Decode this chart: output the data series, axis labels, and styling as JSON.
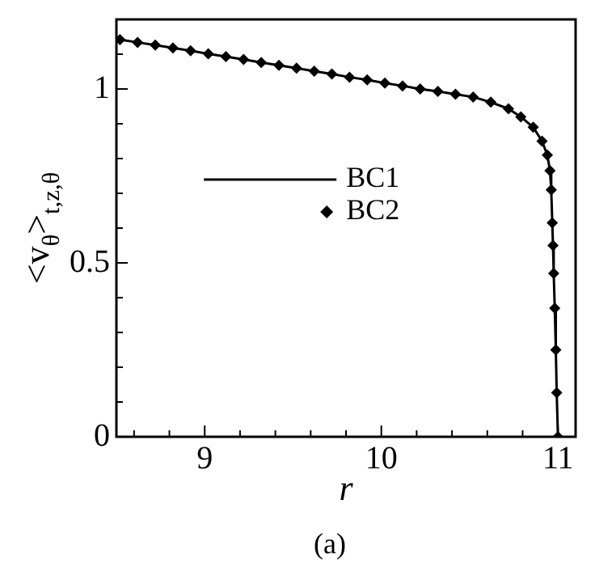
{
  "chart_data": {
    "type": "line",
    "xlabel": "r",
    "ylabel": "<v$_{θ}$>$_{t,z,θ}$",
    "annotations": [
      "(a)"
    ],
    "xlim": [
      8.5,
      11.1
    ],
    "ylim": [
      0,
      1.2
    ],
    "xticks": [
      {
        "value": 8.6,
        "label": null
      },
      {
        "value": 8.8,
        "label": null
      },
      9,
      {
        "value": 9.2,
        "label": null
      },
      {
        "value": 9.4,
        "label": null
      },
      {
        "value": 9.6,
        "label": null
      },
      {
        "value": 9.8,
        "label": null
      },
      10,
      {
        "value": 10.2,
        "label": null
      },
      {
        "value": 10.4,
        "label": null
      },
      {
        "value": 10.6,
        "label": null
      },
      {
        "value": 10.8,
        "label": null
      },
      11
    ],
    "yticks": [
      0,
      {
        "value": 0.1,
        "label": null
      },
      {
        "value": 0.2,
        "label": null
      },
      {
        "value": 0.3,
        "label": null
      },
      {
        "value": 0.4,
        "label": null
      },
      0.5,
      {
        "value": 0.6,
        "label": null
      },
      {
        "value": 0.7,
        "label": null
      },
      {
        "value": 0.8,
        "label": null
      },
      {
        "value": 0.9,
        "label": null
      },
      1,
      {
        "value": 1.1,
        "label": null
      }
    ],
    "grid": false,
    "legend": "left",
    "series": [
      {
        "name": "BC1",
        "type": "line",
        "color": "#000000",
        "marker": "none",
        "line_style": "solid",
        "x": [
          8.52,
          8.62,
          8.72,
          8.82,
          8.92,
          9.02,
          9.12,
          9.22,
          9.32,
          9.42,
          9.52,
          9.62,
          9.72,
          9.82,
          9.92,
          10.02,
          10.12,
          10.22,
          10.32,
          10.42,
          10.52,
          10.62,
          10.72,
          10.79,
          10.86,
          10.91,
          10.94,
          10.955,
          10.962,
          10.968,
          10.972,
          10.976,
          10.982,
          10.988,
          10.993,
          11.0
        ],
        "values": [
          1.142,
          1.134,
          1.126,
          1.118,
          1.11,
          1.101,
          1.093,
          1.085,
          1.076,
          1.068,
          1.06,
          1.051,
          1.043,
          1.034,
          1.026,
          1.017,
          1.009,
          1.0,
          0.993,
          0.985,
          0.977,
          0.962,
          0.943,
          0.92,
          0.89,
          0.85,
          0.81,
          0.765,
          0.71,
          0.615,
          0.55,
          0.47,
          0.37,
          0.25,
          0.127,
          0
        ]
      },
      {
        "name": "BC2",
        "type": "scatter",
        "color": "#000000",
        "marker": "diamond",
        "x": [
          8.52,
          8.62,
          8.72,
          8.82,
          8.92,
          9.02,
          9.12,
          9.22,
          9.32,
          9.42,
          9.52,
          9.62,
          9.72,
          9.82,
          9.92,
          10.02,
          10.12,
          10.22,
          10.32,
          10.42,
          10.52,
          10.62,
          10.72,
          10.79,
          10.86,
          10.91,
          10.94,
          10.955,
          10.962,
          10.968,
          10.972,
          10.976,
          10.982,
          10.988,
          10.993,
          11.0
        ],
        "values": [
          1.142,
          1.134,
          1.126,
          1.118,
          1.11,
          1.101,
          1.093,
          1.085,
          1.076,
          1.068,
          1.06,
          1.051,
          1.043,
          1.034,
          1.026,
          1.017,
          1.009,
          1.0,
          0.993,
          0.985,
          0.977,
          0.962,
          0.943,
          0.92,
          0.89,
          0.85,
          0.81,
          0.765,
          0.71,
          0.615,
          0.55,
          0.47,
          0.37,
          0.25,
          0.127,
          0
        ]
      }
    ]
  }
}
